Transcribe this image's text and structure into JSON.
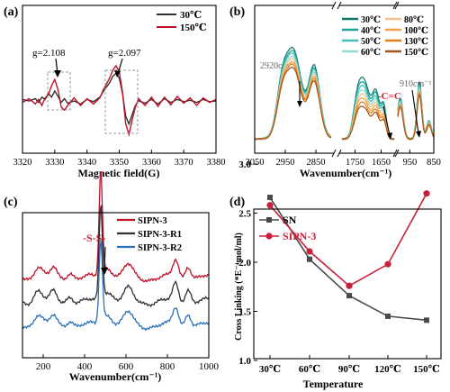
{
  "chart_data": [
    {
      "panel": "(a)",
      "type": "line",
      "xlabel": "Magnetic field(G)",
      "ylabel": "",
      "xlim": [
        3320,
        3380
      ],
      "xticks": [
        3320,
        3330,
        3340,
        3350,
        3360,
        3370,
        3380
      ],
      "legend": {
        "placement": "top-right",
        "entries": [
          "30℃",
          "150℃"
        ]
      },
      "annotations": [
        "g=2.108",
        "g=2.097"
      ],
      "series": [
        {
          "name": "30℃",
          "color": "#303030",
          "x": [
            3320,
            3322,
            3324,
            3325,
            3326,
            3327,
            3328,
            3329,
            3330,
            3331,
            3332,
            3333,
            3334,
            3336,
            3338,
            3340,
            3342,
            3344,
            3345,
            3346,
            3347,
            3348,
            3349,
            3350,
            3351,
            3352,
            3353,
            3354,
            3355,
            3356,
            3358,
            3360,
            3362,
            3364,
            3366,
            3368,
            3370,
            3372,
            3374,
            3376,
            3378,
            3380
          ],
          "y": [
            0.02,
            0.0,
            0.03,
            -0.02,
            0.05,
            0.02,
            0.1,
            0.05,
            0.13,
            0.06,
            -0.02,
            0.03,
            -0.03,
            0.0,
            -0.04,
            0.02,
            -0.01,
            0.05,
            0.12,
            0.18,
            0.24,
            0.32,
            0.36,
            0.3,
            0.1,
            -0.2,
            -0.3,
            -0.18,
            -0.06,
            0.0,
            -0.03,
            0.02,
            -0.04,
            0.03,
            -0.02,
            0.02,
            -0.01,
            0.01,
            -0.02,
            0.02,
            -0.01,
            0.0
          ]
        },
        {
          "name": "150℃",
          "color": "#c0102a",
          "x": [
            3320,
            3322,
            3324,
            3325,
            3326,
            3327,
            3328,
            3329,
            3330,
            3331,
            3332,
            3333,
            3334,
            3336,
            3338,
            3340,
            3342,
            3344,
            3345,
            3346,
            3347,
            3348,
            3349,
            3350,
            3351,
            3352,
            3353,
            3354,
            3355,
            3356,
            3358,
            3360,
            3362,
            3364,
            3366,
            3368,
            3370,
            3372,
            3374,
            3376,
            3378,
            3380
          ],
          "y": [
            -0.02,
            0.03,
            -0.04,
            0.02,
            -0.06,
            0.04,
            0.08,
            0.2,
            0.28,
            0.15,
            -0.08,
            -0.12,
            -0.06,
            0.04,
            -0.06,
            0.03,
            -0.04,
            0.04,
            0.14,
            0.22,
            0.3,
            0.4,
            0.46,
            0.38,
            0.12,
            -0.3,
            -0.44,
            -0.25,
            -0.08,
            0.03,
            -0.06,
            0.05,
            -0.07,
            0.05,
            -0.05,
            0.06,
            -0.03,
            0.04,
            -0.06,
            0.04,
            -0.02,
            0.02
          ]
        }
      ]
    },
    {
      "panel": "(b)",
      "type": "line",
      "xlabel": "Wavenumber(cm⁻¹)",
      "ylabel": "",
      "xlim": [
        3050,
        850
      ],
      "axis_breaks": true,
      "xticks": [
        3050,
        2950,
        2850,
        1750,
        1650,
        950,
        850
      ],
      "legend": {
        "placement": "top-right",
        "entries": [
          "30℃",
          "40℃",
          "50℃",
          "60℃",
          "80℃",
          "100℃",
          "130℃",
          "150℃"
        ]
      },
      "annotations": [
        "2920cm⁻¹",
        "910cm⁻¹",
        "-C=C"
      ],
      "series": [
        {
          "name": "30℃",
          "color": "#0f766e",
          "scale": 1.0
        },
        {
          "name": "40℃",
          "color": "#1aa39a",
          "scale": 0.97
        },
        {
          "name": "50℃",
          "color": "#46c0b6",
          "scale": 0.94
        },
        {
          "name": "60℃",
          "color": "#8fd9cf",
          "scale": 0.91
        },
        {
          "name": "80℃",
          "color": "#f5c28a",
          "scale": 0.88
        },
        {
          "name": "100℃",
          "color": "#f2a245",
          "scale": 0.85
        },
        {
          "name": "130℃",
          "color": "#e07e1a",
          "scale": 0.82
        },
        {
          "name": "150℃",
          "color": "#a3561a",
          "scale": 0.79
        }
      ]
    },
    {
      "panel": "(c)",
      "type": "line",
      "xlabel": "Wavenumber(cm⁻¹)",
      "ylabel": "",
      "xlim": [
        100,
        1000
      ],
      "xticks": [
        200,
        400,
        600,
        800,
        1000
      ],
      "legend": {
        "placement": "top-right",
        "entries": [
          "SIPN-3",
          "SIPN-3-R1",
          "SIPN-3-R2"
        ]
      },
      "annotations": [
        "-S-S-"
      ],
      "series": [
        {
          "name": "SIPN-3",
          "color": "#c0102a",
          "offset": 0.48,
          "peak": 1.0
        },
        {
          "name": "SIPN-3-R1",
          "color": "#303030",
          "offset": 0.24,
          "peak": 0.9
        },
        {
          "name": "SIPN-3-R2",
          "color": "#2c6fb5",
          "offset": 0.0,
          "peak": 0.8
        }
      ]
    },
    {
      "panel": "(d)",
      "type": "line",
      "xlabel": "Temperature",
      "ylabel": "Cross Linking (*E⁻⁴mol/ml)",
      "categories": [
        "30℃",
        "60℃",
        "90℃",
        "120℃",
        "150℃"
      ],
      "ylim": [
        1.0,
        3.0
      ],
      "yticks": [
        1.0,
        1.5,
        2.0,
        2.5,
        3.0
      ],
      "legend": {
        "placement": "top-left",
        "entries": [
          "SN",
          "SIPN-3"
        ]
      },
      "series": [
        {
          "name": "SN",
          "color": "#4a4a4a",
          "marker": "square",
          "values": [
            2.66,
            2.03,
            1.66,
            1.45,
            1.41
          ]
        },
        {
          "name": "SIPN-3",
          "color": "#c8203a",
          "marker": "circle",
          "values": [
            2.58,
            2.11,
            1.76,
            1.98,
            2.7
          ]
        }
      ]
    }
  ]
}
